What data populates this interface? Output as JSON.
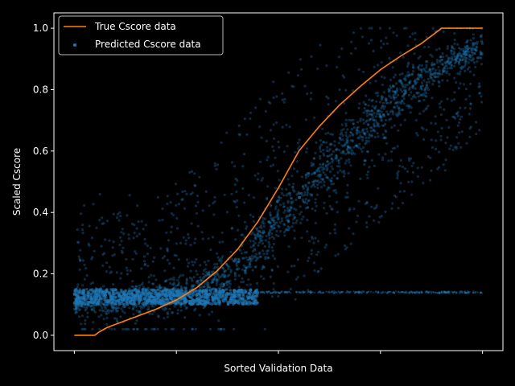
{
  "chart_data": {
    "type": "scatter",
    "title": "",
    "xlabel": "Sorted Validation Data",
    "ylabel": "Scaled Cscore",
    "xlim": [
      -0.05,
      1.05
    ],
    "ylim": [
      -0.05,
      1.05
    ],
    "x_ticks_labeled": false,
    "y_ticks": [
      0.0,
      0.2,
      0.4,
      0.6,
      0.8,
      1.0
    ],
    "y_tick_labels": [
      "0.0",
      "0.2",
      "0.4",
      "0.6",
      "0.8",
      "1.0"
    ],
    "grid": false,
    "legend_position": "top-left",
    "background": "#000000",
    "series": [
      {
        "name": "True Cscore data",
        "kind": "line",
        "color": "#ff7f0e",
        "x": [
          0.0,
          0.05,
          0.06,
          0.08,
          0.1,
          0.15,
          0.2,
          0.25,
          0.3,
          0.35,
          0.4,
          0.45,
          0.5,
          0.55,
          0.6,
          0.65,
          0.7,
          0.75,
          0.8,
          0.85,
          0.9,
          0.95,
          0.97,
          1.0
        ],
        "y": [
          0.0,
          0.0,
          0.01,
          0.025,
          0.035,
          0.06,
          0.085,
          0.115,
          0.155,
          0.21,
          0.28,
          0.37,
          0.48,
          0.6,
          0.68,
          0.75,
          0.81,
          0.865,
          0.91,
          0.95,
          1.0,
          1.0,
          1.0,
          1.0
        ]
      },
      {
        "name": "Predicted Cscore data",
        "kind": "scatter",
        "color": "#1f77b4",
        "x": [
          0.0,
          0.1,
          0.2,
          0.3,
          0.4,
          0.5,
          0.6,
          0.7,
          0.8,
          0.9,
          1.0
        ],
        "y_center": [
          0.11,
          0.11,
          0.12,
          0.15,
          0.22,
          0.37,
          0.52,
          0.66,
          0.78,
          0.88,
          0.93
        ],
        "y_low": [
          0.03,
          0.04,
          0.05,
          0.06,
          0.08,
          0.12,
          0.2,
          0.3,
          0.42,
          0.55,
          0.65
        ],
        "y_high": [
          0.35,
          0.4,
          0.45,
          0.55,
          0.7,
          0.85,
          0.95,
          1.0,
          1.0,
          1.0,
          1.0
        ],
        "band_y": [
          0.1,
          0.15
        ]
      }
    ]
  }
}
